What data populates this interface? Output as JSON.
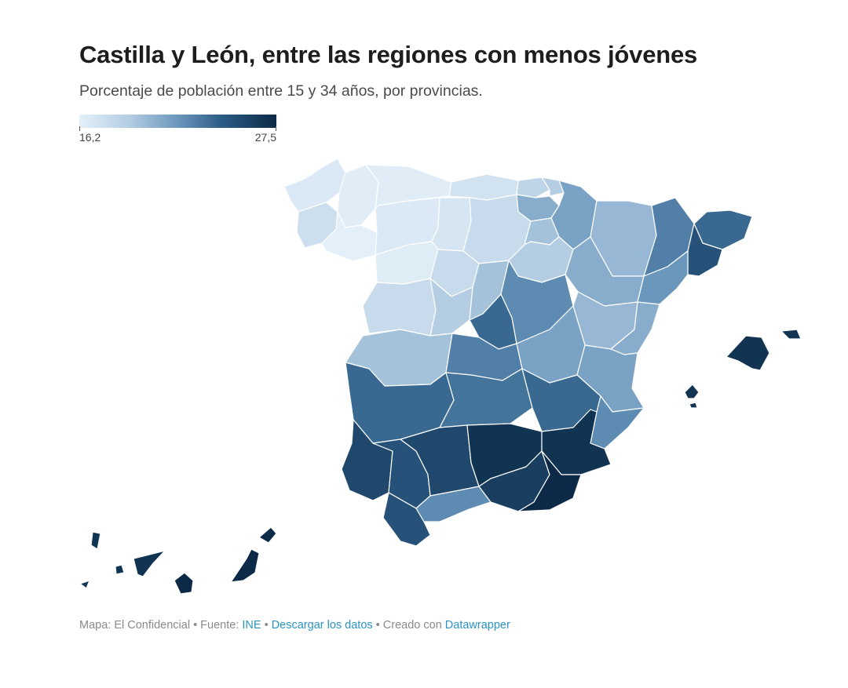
{
  "title": "Castilla y León, entre las regiones con menos jóvenes",
  "subtitle": "Porcentaje de población entre 15 y 34 años, por provincias.",
  "legend": {
    "min_label": "16,2",
    "max_label": "27,5",
    "min": 16.2,
    "max": 27.5,
    "colors": [
      "#e4f0f9",
      "#b4cde3",
      "#6b97bd",
      "#2c5c85",
      "#0c2a47"
    ]
  },
  "footer": {
    "prefix": "Mapa: El Confidencial • Fuente: ",
    "source": "INE",
    "sep1": " • ",
    "download": "Descargar los datos",
    "sep2": " • Creado con ",
    "tool": "Datawrapper"
  },
  "provinces": [
    {
      "name": "Coruña",
      "level": 0.05
    },
    {
      "name": "Lugo",
      "level": 0.02
    },
    {
      "name": "Pontevedra",
      "level": 0.12
    },
    {
      "name": "Ourense",
      "level": 0.0
    },
    {
      "name": "Asturias",
      "level": 0.02
    },
    {
      "name": "Cantabria",
      "level": 0.1
    },
    {
      "name": "Vizcaya",
      "level": 0.2
    },
    {
      "name": "Guipúzcoa",
      "level": 0.25
    },
    {
      "name": "Álava",
      "level": 0.4
    },
    {
      "name": "Navarra",
      "level": 0.45
    },
    {
      "name": "León",
      "level": 0.05
    },
    {
      "name": "Palencia",
      "level": 0.08
    },
    {
      "name": "Burgos",
      "level": 0.15
    },
    {
      "name": "La Rioja",
      "level": 0.3
    },
    {
      "name": "Zamora",
      "level": 0.03
    },
    {
      "name": "Valladolid",
      "level": 0.15
    },
    {
      "name": "Soria",
      "level": 0.25
    },
    {
      "name": "Huesca",
      "level": 0.35
    },
    {
      "name": "Zaragoza",
      "level": 0.4
    },
    {
      "name": "Lleida",
      "level": 0.6
    },
    {
      "name": "Girona",
      "level": 0.7
    },
    {
      "name": "Barcelona",
      "level": 0.8
    },
    {
      "name": "Tarragona",
      "level": 0.5
    },
    {
      "name": "Salamanca",
      "level": 0.15
    },
    {
      "name": "Ávila",
      "level": 0.25
    },
    {
      "name": "Segovia",
      "level": 0.3
    },
    {
      "name": "Madrid",
      "level": 0.7
    },
    {
      "name": "Guadalajara",
      "level": 0.55
    },
    {
      "name": "Teruel",
      "level": 0.35
    },
    {
      "name": "Castellón",
      "level": 0.4
    },
    {
      "name": "Cáceres",
      "level": 0.3
    },
    {
      "name": "Toledo",
      "level": 0.6
    },
    {
      "name": "Cuenca",
      "level": 0.45
    },
    {
      "name": "Valencia",
      "level": 0.45
    },
    {
      "name": "Badajoz",
      "level": 0.7
    },
    {
      "name": "Ciudad Real",
      "level": 0.65
    },
    {
      "name": "Albacete",
      "level": 0.7
    },
    {
      "name": "Alicante",
      "level": 0.55
    },
    {
      "name": "Huelva",
      "level": 0.85
    },
    {
      "name": "Sevilla",
      "level": 0.8
    },
    {
      "name": "Córdoba",
      "level": 0.85
    },
    {
      "name": "Jaén",
      "level": 0.95
    },
    {
      "name": "Murcia",
      "level": 0.95
    },
    {
      "name": "Cádiz",
      "level": 0.8
    },
    {
      "name": "Málaga",
      "level": 0.55
    },
    {
      "name": "Granada",
      "level": 0.9
    },
    {
      "name": "Almería",
      "level": 1.0
    },
    {
      "name": "Baleares",
      "level": 0.95
    },
    {
      "name": "Las Palmas",
      "level": 1.0
    },
    {
      "name": "Santa Cruz de Tenerife",
      "level": 0.95
    }
  ]
}
